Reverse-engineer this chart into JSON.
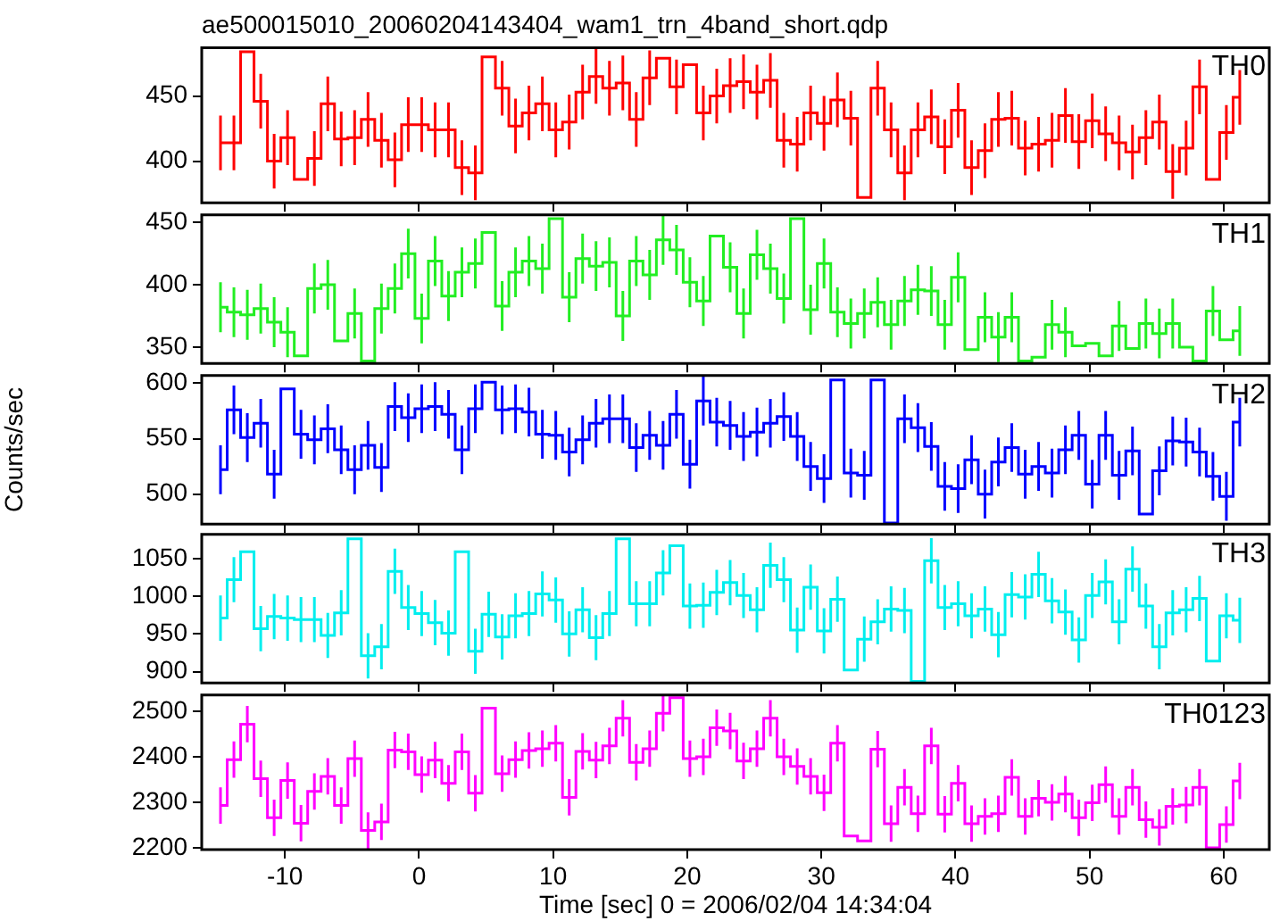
{
  "chart_data": [
    {
      "type": "step",
      "title": "ae500015010_20060204143404_wam1_trn_4band_short.qdp",
      "tick_labels": "y",
      "grid": false,
      "xlim": [
        -16.2,
        63.4
      ],
      "xticks": [
        -10,
        0,
        10,
        20,
        30,
        40,
        50,
        60
      ],
      "ylim": [
        368,
        487
      ],
      "yticks": [
        400,
        450
      ],
      "x": [
        -14.8,
        -13.8,
        -12.8,
        -11.8,
        -10.8,
        -9.8,
        -8.8,
        -7.8,
        -6.8,
        -5.8,
        -4.8,
        -3.8,
        -2.8,
        -1.8,
        -0.8,
        0.2,
        1.2,
        2.2,
        3.2,
        4.2,
        5.2,
        6.2,
        7.2,
        8.2,
        9.2,
        10.2,
        11.2,
        12.2,
        13.2,
        14.2,
        15.2,
        16.2,
        17.2,
        18.2,
        19.2,
        20.2,
        21.2,
        22.2,
        23.2,
        24.2,
        25.2,
        26.2,
        27.2,
        28.2,
        29.2,
        30.2,
        31.2,
        32.2,
        33.2,
        34.2,
        35.2,
        36.2,
        37.2,
        38.2,
        39.2,
        40.2,
        41.2,
        42.2,
        43.2,
        44.2,
        45.2,
        46.2,
        47.2,
        48.2,
        49.2,
        50.2,
        51.2,
        52.2,
        53.2,
        54.2,
        55.2,
        56.2,
        57.2,
        58.2,
        59.2,
        60.2,
        61.2
      ],
      "series": [
        {
          "name": "TH0",
          "color": "#ff0000",
          "values": [
            414,
            414,
            484,
            446,
            400,
            418,
            386,
            402,
            444,
            417,
            418,
            432,
            416,
            401,
            428,
            428,
            424,
            424,
            395,
            391,
            480,
            456,
            427,
            437,
            444,
            424,
            430,
            453,
            465,
            456,
            460,
            432,
            464,
            479,
            457,
            474,
            437,
            450,
            458,
            461,
            453,
            462,
            416,
            413,
            437,
            429,
            447,
            433,
            372,
            456,
            424,
            391,
            424,
            434,
            411,
            439,
            395,
            408,
            432,
            433,
            410,
            413,
            416,
            435,
            415,
            431,
            421,
            414,
            407,
            418,
            430,
            392,
            410,
            457,
            386,
            422,
            449
          ],
          "errors": [
            21,
            21,
            null,
            21,
            21,
            21,
            null,
            21,
            21,
            21,
            21,
            21,
            21,
            21,
            21,
            21,
            21,
            21,
            21,
            21,
            null,
            21,
            21,
            21,
            21,
            21,
            21,
            21,
            21,
            21,
            21,
            21,
            21,
            null,
            21,
            null,
            21,
            21,
            21,
            21,
            21,
            21,
            21,
            21,
            21,
            21,
            21,
            21,
            null,
            21,
            21,
            21,
            21,
            21,
            21,
            21,
            21,
            21,
            21,
            21,
            21,
            21,
            21,
            21,
            21,
            21,
            21,
            21,
            21,
            21,
            21,
            21,
            21,
            21,
            null,
            21,
            21
          ]
        }
      ]
    },
    {
      "type": "step",
      "tick_labels": "y",
      "grid": false,
      "xlim": [
        -16.2,
        63.4
      ],
      "xticks": [
        -10,
        0,
        10,
        20,
        30,
        40,
        50,
        60
      ],
      "ylim": [
        337,
        456
      ],
      "yticks": [
        350,
        400,
        450
      ],
      "x": [
        -14.8,
        -13.8,
        -12.8,
        -11.8,
        -10.8,
        -9.8,
        -8.8,
        -7.8,
        -6.8,
        -5.8,
        -4.8,
        -3.8,
        -2.8,
        -1.8,
        -0.8,
        0.2,
        1.2,
        2.2,
        3.2,
        4.2,
        5.2,
        6.2,
        7.2,
        8.2,
        9.2,
        10.2,
        11.2,
        12.2,
        13.2,
        14.2,
        15.2,
        16.2,
        17.2,
        18.2,
        19.2,
        20.2,
        21.2,
        22.2,
        23.2,
        24.2,
        25.2,
        26.2,
        27.2,
        28.2,
        29.2,
        30.2,
        31.2,
        32.2,
        33.2,
        34.2,
        35.2,
        36.2,
        37.2,
        38.2,
        39.2,
        40.2,
        41.2,
        42.2,
        43.2,
        44.2,
        45.2,
        46.2,
        47.2,
        48.2,
        49.2,
        50.2,
        51.2,
        52.2,
        53.2,
        54.2,
        55.2,
        56.2,
        57.2,
        58.2,
        59.2,
        60.2,
        61.2
      ],
      "series": [
        {
          "name": "TH1",
          "color": "#22ee22",
          "values": [
            382,
            378,
            376,
            381,
            370,
            362,
            343,
            397,
            400,
            355,
            377,
            339,
            381,
            397,
            425,
            373,
            419,
            391,
            410,
            417,
            442,
            383,
            410,
            419,
            413,
            453,
            390,
            421,
            415,
            418,
            375,
            419,
            408,
            436,
            428,
            402,
            387,
            439,
            414,
            377,
            424,
            413,
            389,
            453,
            380,
            417,
            378,
            369,
            377,
            386,
            368,
            387,
            396,
            395,
            368,
            406,
            348,
            374,
            358,
            374,
            339,
            342,
            368,
            362,
            351,
            353,
            343,
            367,
            349,
            369,
            361,
            369,
            350,
            339,
            379,
            356,
            363
          ],
          "errors": [
            20,
            20,
            20,
            20,
            20,
            20,
            null,
            20,
            20,
            null,
            20,
            null,
            20,
            20,
            20,
            20,
            20,
            20,
            20,
            20,
            null,
            20,
            20,
            20,
            20,
            null,
            20,
            20,
            20,
            20,
            20,
            20,
            20,
            20,
            20,
            20,
            20,
            null,
            20,
            20,
            20,
            20,
            20,
            null,
            20,
            20,
            20,
            20,
            20,
            20,
            20,
            20,
            20,
            20,
            20,
            20,
            null,
            20,
            20,
            20,
            null,
            null,
            20,
            20,
            null,
            null,
            null,
            20,
            null,
            20,
            20,
            20,
            null,
            null,
            20,
            null,
            20
          ]
        }
      ]
    },
    {
      "type": "step",
      "tick_labels": "y",
      "grid": false,
      "ylabel": "Counts/sec",
      "xlim": [
        -16.2,
        63.4
      ],
      "xticks": [
        -10,
        0,
        10,
        20,
        30,
        40,
        50,
        60
      ],
      "ylim": [
        473,
        607
      ],
      "yticks": [
        500,
        550,
        600
      ],
      "x": [
        -14.8,
        -13.8,
        -12.8,
        -11.8,
        -10.8,
        -9.8,
        -8.8,
        -7.8,
        -6.8,
        -5.8,
        -4.8,
        -3.8,
        -2.8,
        -1.8,
        -0.8,
        0.2,
        1.2,
        2.2,
        3.2,
        4.2,
        5.2,
        6.2,
        7.2,
        8.2,
        9.2,
        10.2,
        11.2,
        12.2,
        13.2,
        14.2,
        15.2,
        16.2,
        17.2,
        18.2,
        19.2,
        20.2,
        21.2,
        22.2,
        23.2,
        24.2,
        25.2,
        26.2,
        27.2,
        28.2,
        29.2,
        30.2,
        31.2,
        32.2,
        33.2,
        34.2,
        35.2,
        36.2,
        37.2,
        38.2,
        39.2,
        40.2,
        41.2,
        42.2,
        43.2,
        44.2,
        45.2,
        46.2,
        47.2,
        48.2,
        49.2,
        50.2,
        51.2,
        52.2,
        53.2,
        54.2,
        55.2,
        56.2,
        57.2,
        58.2,
        59.2,
        60.2,
        61.2
      ],
      "series": [
        {
          "name": "TH2",
          "color": "#0000ff",
          "values": [
            522,
            576,
            551,
            564,
            518,
            595,
            554,
            549,
            559,
            540,
            522,
            544,
            524,
            579,
            569,
            577,
            579,
            572,
            540,
            577,
            601,
            576,
            577,
            574,
            554,
            553,
            538,
            549,
            564,
            568,
            568,
            542,
            553,
            544,
            572,
            527,
            584,
            565,
            562,
            552,
            556,
            564,
            570,
            552,
            525,
            514,
            603,
            519,
            517,
            603,
            474,
            568,
            560,
            543,
            507,
            505,
            531,
            500,
            529,
            542,
            518,
            525,
            519,
            540,
            553,
            509,
            553,
            517,
            539,
            482,
            521,
            548,
            547,
            538,
            516,
            498,
            565
          ],
          "errors": [
            22,
            22,
            22,
            22,
            22,
            null,
            22,
            22,
            22,
            22,
            22,
            22,
            22,
            22,
            22,
            22,
            22,
            22,
            22,
            22,
            null,
            22,
            22,
            22,
            22,
            22,
            22,
            22,
            22,
            22,
            22,
            22,
            22,
            22,
            22,
            22,
            22,
            22,
            22,
            22,
            22,
            22,
            22,
            22,
            22,
            22,
            null,
            22,
            22,
            null,
            null,
            22,
            22,
            22,
            22,
            22,
            22,
            22,
            22,
            22,
            22,
            22,
            22,
            22,
            22,
            22,
            22,
            22,
            22,
            null,
            22,
            22,
            22,
            22,
            22,
            22,
            22
          ]
        }
      ]
    },
    {
      "type": "step",
      "tick_labels": "y",
      "grid": false,
      "xlim": [
        -16.2,
        63.4
      ],
      "xticks": [
        -10,
        0,
        10,
        20,
        30,
        40,
        50,
        60
      ],
      "ylim": [
        885,
        1082
      ],
      "yticks": [
        900,
        950,
        1000,
        1050
      ],
      "x": [
        -14.8,
        -13.8,
        -12.8,
        -11.8,
        -10.8,
        -9.8,
        -8.8,
        -7.8,
        -6.8,
        -5.8,
        -4.8,
        -3.8,
        -2.8,
        -1.8,
        -0.8,
        0.2,
        1.2,
        2.2,
        3.2,
        4.2,
        5.2,
        6.2,
        7.2,
        8.2,
        9.2,
        10.2,
        11.2,
        12.2,
        13.2,
        14.2,
        15.2,
        16.2,
        17.2,
        18.2,
        19.2,
        20.2,
        21.2,
        22.2,
        23.2,
        24.2,
        25.2,
        26.2,
        27.2,
        28.2,
        29.2,
        30.2,
        31.2,
        32.2,
        33.2,
        34.2,
        35.2,
        36.2,
        37.2,
        38.2,
        39.2,
        40.2,
        41.2,
        42.2,
        43.2,
        44.2,
        45.2,
        46.2,
        47.2,
        48.2,
        49.2,
        50.2,
        51.2,
        52.2,
        53.2,
        54.2,
        55.2,
        56.2,
        57.2,
        58.2,
        59.2,
        60.2,
        61.2
      ],
      "series": [
        {
          "name": "TH3",
          "color": "#00eeee",
          "values": [
            971,
            1022,
            1059,
            957,
            973,
            971,
            969,
            969,
            948,
            978,
            1076,
            921,
            933,
            1033,
            985,
            977,
            965,
            951,
            1059,
            927,
            976,
            946,
            974,
            977,
            1003,
            995,
            950,
            982,
            945,
            977,
            1076,
            990,
            990,
            1031,
            1067,
            987,
            988,
            1005,
            1018,
            1001,
            982,
            1041,
            1022,
            955,
            1012,
            954,
            996,
            902,
            943,
            966,
            983,
            981,
            887,
            1047,
            985,
            990,
            974,
            983,
            949,
            1002,
            999,
            1029,
            994,
            979,
            942,
            1001,
            1019,
            966,
            1036,
            987,
            933,
            978,
            982,
            997,
            914,
            974,
            968
          ],
          "errors": [
            30,
            30,
            null,
            30,
            30,
            30,
            30,
            30,
            30,
            30,
            null,
            30,
            30,
            30,
            30,
            30,
            30,
            30,
            null,
            30,
            30,
            30,
            30,
            30,
            30,
            30,
            30,
            30,
            30,
            30,
            null,
            30,
            30,
            30,
            null,
            30,
            30,
            30,
            30,
            30,
            30,
            30,
            30,
            30,
            30,
            30,
            30,
            null,
            30,
            30,
            30,
            30,
            null,
            30,
            30,
            30,
            30,
            30,
            30,
            30,
            30,
            30,
            30,
            30,
            30,
            30,
            30,
            30,
            30,
            30,
            30,
            30,
            30,
            30,
            null,
            30,
            30
          ]
        }
      ]
    },
    {
      "type": "step",
      "grid": false,
      "xlabel": "Time [sec] 0 = 2006/02/04 14:34:04",
      "xlim": [
        -16.2,
        63.4
      ],
      "xticks": [
        -10,
        0,
        10,
        20,
        30,
        40,
        50,
        60
      ],
      "ylim": [
        2196,
        2536
      ],
      "yticks": [
        2200,
        2300,
        2400,
        2500
      ],
      "x": [
        -14.8,
        -13.8,
        -12.8,
        -11.8,
        -10.8,
        -9.8,
        -8.8,
        -7.8,
        -6.8,
        -5.8,
        -4.8,
        -3.8,
        -2.8,
        -1.8,
        -0.8,
        0.2,
        1.2,
        2.2,
        3.2,
        4.2,
        5.2,
        6.2,
        7.2,
        8.2,
        9.2,
        10.2,
        11.2,
        12.2,
        13.2,
        14.2,
        15.2,
        16.2,
        17.2,
        18.2,
        19.2,
        20.2,
        21.2,
        22.2,
        23.2,
        24.2,
        25.2,
        26.2,
        27.2,
        28.2,
        29.2,
        30.2,
        31.2,
        32.2,
        33.2,
        34.2,
        35.2,
        36.2,
        37.2,
        38.2,
        39.2,
        40.2,
        41.2,
        42.2,
        43.2,
        44.2,
        45.2,
        46.2,
        47.2,
        48.2,
        49.2,
        50.2,
        51.2,
        52.2,
        53.2,
        54.2,
        55.2,
        56.2,
        57.2,
        58.2,
        59.2,
        60.2,
        61.2
      ],
      "series": [
        {
          "name": "TH0123",
          "color": "#ff00ff",
          "values": [
            2293,
            2394,
            2472,
            2352,
            2266,
            2348,
            2254,
            2324,
            2357,
            2293,
            2396,
            2238,
            2257,
            2415,
            2411,
            2361,
            2393,
            2342,
            2411,
            2320,
            2507,
            2363,
            2394,
            2414,
            2418,
            2430,
            2311,
            2412,
            2393,
            2424,
            2485,
            2388,
            2418,
            2496,
            2530,
            2396,
            2400,
            2464,
            2457,
            2391,
            2418,
            2485,
            2400,
            2379,
            2357,
            2321,
            2430,
            2226,
            2215,
            2417,
            2253,
            2333,
            2275,
            2424,
            2274,
            2342,
            2253,
            2269,
            2275,
            2355,
            2269,
            2309,
            2300,
            2318,
            2266,
            2299,
            2339,
            2269,
            2333,
            2262,
            2245,
            2291,
            2294,
            2333,
            2200,
            2251,
            2347
          ],
          "errors": [
            40,
            40,
            40,
            40,
            40,
            40,
            40,
            40,
            40,
            40,
            40,
            40,
            40,
            40,
            40,
            40,
            40,
            40,
            40,
            40,
            null,
            40,
            40,
            40,
            40,
            40,
            40,
            40,
            40,
            40,
            40,
            40,
            40,
            40,
            null,
            40,
            40,
            40,
            40,
            40,
            40,
            40,
            40,
            40,
            40,
            40,
            40,
            null,
            null,
            40,
            40,
            40,
            40,
            40,
            40,
            40,
            40,
            40,
            40,
            40,
            40,
            40,
            40,
            40,
            40,
            40,
            40,
            40,
            40,
            40,
            40,
            40,
            40,
            40,
            null,
            40,
            40
          ]
        }
      ]
    }
  ]
}
